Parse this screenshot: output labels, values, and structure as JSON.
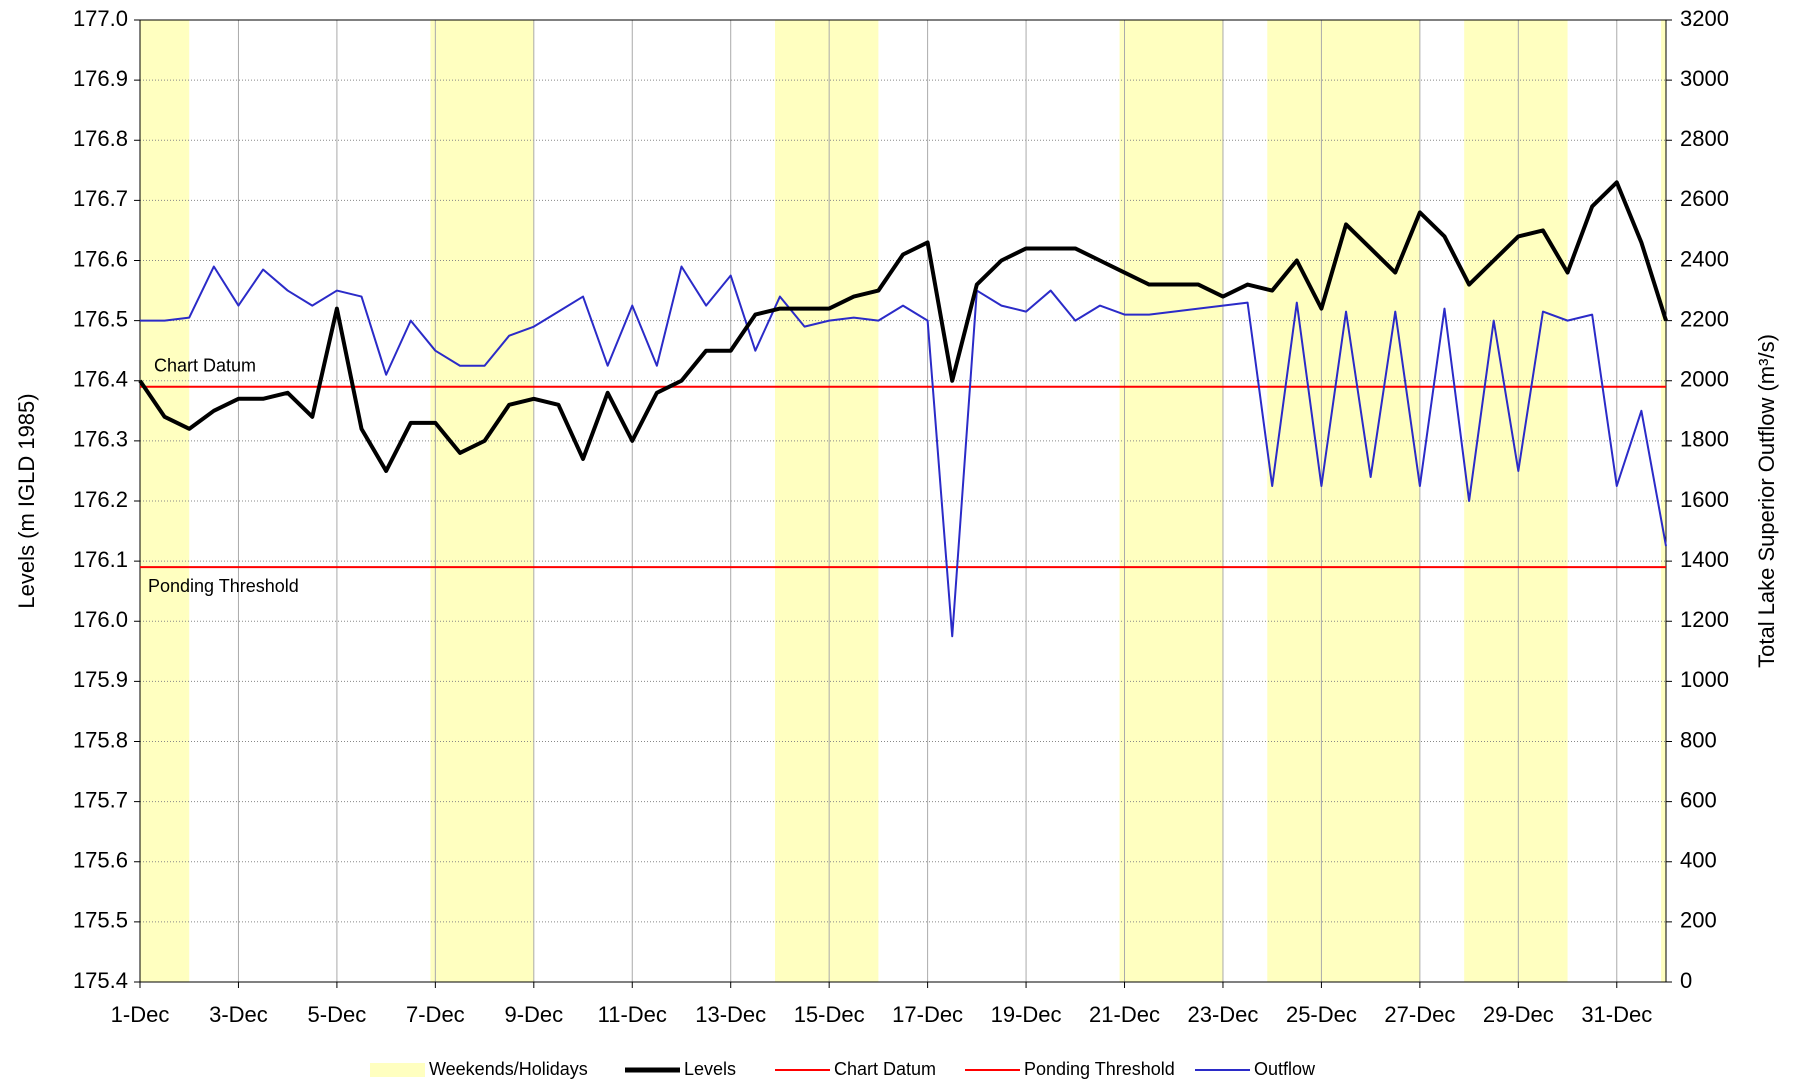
{
  "chart_data": {
    "type": "line",
    "ylabel": "Levels (m IGLD 1985)",
    "y2label": "Total Lake Superior Outflow (m³/s)",
    "x": [
      0,
      0.5,
      1,
      1.5,
      2,
      2.5,
      3,
      3.5,
      4,
      4.5,
      5,
      5.5,
      6,
      6.5,
      7,
      7.5,
      8,
      8.5,
      9,
      9.5,
      10,
      10.5,
      11,
      11.5,
      12,
      12.5,
      13,
      13.5,
      14,
      14.5,
      15,
      15.5,
      16,
      16.5,
      17,
      17.5,
      18,
      18.5,
      19,
      19.5,
      20,
      20.5,
      21,
      21.5,
      22,
      22.5,
      23,
      23.5,
      24,
      24.5,
      25,
      25.5,
      26,
      26.5,
      27,
      27.5,
      28,
      28.5,
      29,
      29.5,
      30,
      30.5,
      31
    ],
    "xlim": [
      0,
      31
    ],
    "xticks": [
      {
        "value": 0,
        "label": "1-Dec"
      },
      {
        "value": 2,
        "label": "3-Dec"
      },
      {
        "value": 4,
        "label": "5-Dec"
      },
      {
        "value": 6,
        "label": "7-Dec"
      },
      {
        "value": 8,
        "label": "9-Dec"
      },
      {
        "value": 10,
        "label": "11-Dec"
      },
      {
        "value": 12,
        "label": "13-Dec"
      },
      {
        "value": 14,
        "label": "15-Dec"
      },
      {
        "value": 16,
        "label": "17-Dec"
      },
      {
        "value": 18,
        "label": "19-Dec"
      },
      {
        "value": 20,
        "label": "21-Dec"
      },
      {
        "value": 22,
        "label": "23-Dec"
      },
      {
        "value": 24,
        "label": "25-Dec"
      },
      {
        "value": 26,
        "label": "27-Dec"
      },
      {
        "value": 28,
        "label": "29-Dec"
      },
      {
        "value": 30,
        "label": "31-Dec"
      }
    ],
    "ylim": [
      175.4,
      177.0
    ],
    "yticks": [
      175.4,
      175.5,
      175.6,
      175.7,
      175.8,
      175.9,
      {
        "value": 176.0,
        "label": "176.0"
      },
      176.1,
      176.2,
      176.3,
      176.4,
      176.5,
      176.6,
      176.7,
      176.8,
      176.9,
      {
        "value": 177.0,
        "label": "177.0"
      }
    ],
    "y2lim": [
      0,
      3200
    ],
    "y2ticks": [
      0,
      200,
      400,
      600,
      800,
      1000,
      1200,
      1400,
      1600,
      1800,
      2000,
      2200,
      2400,
      2600,
      2800,
      3000,
      3200
    ],
    "grid": true,
    "shaded": {
      "name": "Weekends/Holidays",
      "color": "#ffffc0",
      "ranges": [
        [
          0,
          1
        ],
        [
          5.9,
          8
        ],
        [
          12.9,
          15
        ],
        [
          19.9,
          22
        ],
        [
          22.9,
          26
        ],
        [
          26.9,
          29
        ],
        [
          30.9,
          31
        ]
      ]
    },
    "hlines": [
      {
        "name": "Chart Datum",
        "value": 176.39,
        "color": "#ff0000"
      },
      {
        "name": "Ponding Threshold",
        "value": 176.09,
        "color": "#ff0000"
      }
    ],
    "series": [
      {
        "name": "Levels",
        "color": "#000000",
        "values": [
          176.4,
          176.34,
          176.32,
          176.35,
          176.37,
          176.37,
          176.38,
          176.34,
          176.52,
          176.32,
          176.25,
          176.33,
          176.33,
          176.28,
          176.3,
          176.36,
          176.37,
          176.36,
          176.27,
          176.38,
          176.3,
          176.38,
          176.4,
          176.45,
          176.45,
          176.51,
          176.52,
          176.52,
          176.52,
          176.54,
          176.55,
          176.61,
          176.63,
          176.4,
          176.56,
          176.6,
          176.62,
          176.62,
          176.62,
          176.6,
          176.58,
          176.56,
          176.56,
          176.56,
          176.54,
          176.56,
          176.55,
          176.6,
          176.52,
          176.66,
          176.62,
          176.58,
          176.68,
          176.64,
          176.56,
          176.6,
          176.64,
          176.65,
          176.58,
          176.69,
          176.73,
          176.63,
          176.5
        ]
      },
      {
        "name": "Outflow",
        "color": "#2b2bc8",
        "axis": "y2",
        "values": [
          2200,
          2200,
          2210,
          2380,
          2250,
          2370,
          2300,
          2250,
          2300,
          2280,
          2020,
          2200,
          2100,
          2050,
          2050,
          2150,
          2180,
          2230,
          2280,
          2050,
          2250,
          2050,
          2380,
          2250,
          2350,
          2100,
          2280,
          2180,
          2200,
          2210,
          2200,
          2250,
          2200,
          1150,
          2300,
          2250,
          2230,
          2300,
          2200,
          2250,
          2220,
          2220,
          2230,
          2240,
          2250,
          2260,
          1650,
          2260,
          1650,
          2230,
          1680,
          2230,
          1650,
          2240,
          1600,
          2200,
          1700,
          2230,
          2200,
          2220,
          1650,
          1900,
          1450
        ]
      }
    ]
  }
}
